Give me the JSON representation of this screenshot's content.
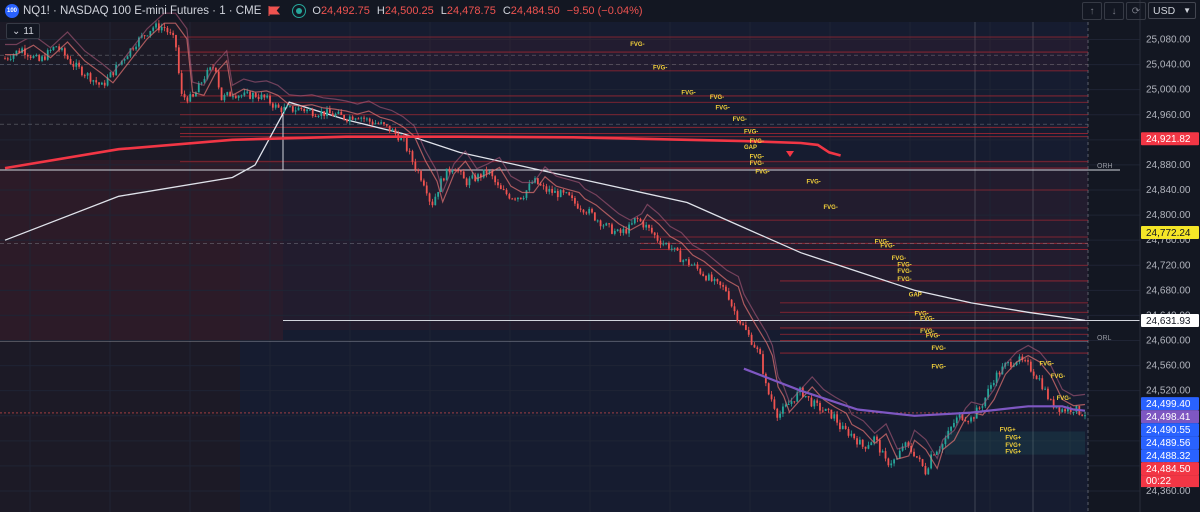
{
  "header": {
    "symbol_badge": "100",
    "title": "NQ1! · NASDAQ 100 E-mini Futures · 1 · CME",
    "open_key": "O",
    "open": "24,492.75",
    "high_key": "H",
    "high": "24,500.25",
    "low_key": "L",
    "low": "24,478.75",
    "close_key": "C",
    "close": "24,484.50",
    "change": "−9.50 (−0.04%)",
    "indicator_count": "11",
    "currency": "USD"
  },
  "colors": {
    "background": "#131722",
    "up": "#26a69a",
    "down": "#ef5350",
    "ema_red": "#f23645",
    "vwap": "#e0e3eb",
    "avg_purple": "#7e57c2",
    "fvg_text": "#f5d33b",
    "level_line": "#b22833"
  },
  "chart_data": {
    "type": "candlestick",
    "symbol": "NQ1!",
    "interval": "1",
    "yaxis": {
      "ticks": [
        "25,080.00",
        "25,040.00",
        "25,000.00",
        "24,960.00",
        "24,920.00",
        "24,880.00",
        "24,840.00",
        "24,800.00",
        "24,760.00",
        "24,720.00",
        "24,680.00",
        "24,640.00",
        "24,600.00",
        "24,560.00",
        "24,520.00",
        "24,480.00",
        "24,440.00",
        "24,400.00",
        "24,360.00"
      ],
      "range": [
        24345,
        25110
      ]
    },
    "price_path": [
      [
        0,
        25050
      ],
      [
        3,
        25065
      ],
      [
        6,
        25045
      ],
      [
        9,
        25070
      ],
      [
        12,
        25040
      ],
      [
        15,
        25020
      ],
      [
        17,
        25005
      ],
      [
        20,
        25040
      ],
      [
        23,
        25075
      ],
      [
        26,
        25100
      ],
      [
        28,
        25100
      ],
      [
        30,
        25075
      ],
      [
        31,
        24990
      ],
      [
        33,
        24985
      ],
      [
        35,
        25020
      ],
      [
        37,
        25040
      ],
      [
        38,
        24985
      ],
      [
        40,
        24995
      ],
      [
        42,
        24990
      ],
      [
        44,
        24992
      ],
      [
        46,
        24985
      ],
      [
        48,
        24970
      ],
      [
        50,
        24968
      ],
      [
        52,
        24970
      ],
      [
        54,
        24965
      ],
      [
        56,
        24963
      ],
      [
        58,
        24960
      ],
      [
        60,
        24955
      ],
      [
        62,
        24960
      ],
      [
        64,
        24950
      ],
      [
        66,
        24945
      ],
      [
        68,
        24935
      ],
      [
        70,
        24920
      ],
      [
        72,
        24880
      ],
      [
        74,
        24848
      ],
      [
        75,
        24815
      ],
      [
        77,
        24860
      ],
      [
        79,
        24880
      ],
      [
        81,
        24852
      ],
      [
        83,
        24860
      ],
      [
        85,
        24870
      ],
      [
        87,
        24840
      ],
      [
        89,
        24830
      ],
      [
        91,
        24830
      ],
      [
        93,
        24855
      ],
      [
        95,
        24840
      ],
      [
        97,
        24835
      ],
      [
        99,
        24830
      ],
      [
        100,
        24820
      ],
      [
        102,
        24810
      ],
      [
        104,
        24795
      ],
      [
        106,
        24780
      ],
      [
        108,
        24770
      ],
      [
        110,
        24780
      ],
      [
        111,
        24795
      ],
      [
        113,
        24780
      ],
      [
        115,
        24760
      ],
      [
        117,
        24750
      ],
      [
        119,
        24730
      ],
      [
        121,
        24720
      ],
      [
        123,
        24705
      ],
      [
        125,
        24690
      ],
      [
        127,
        24680
      ],
      [
        128,
        24652
      ],
      [
        130,
        24620
      ],
      [
        132,
        24590
      ],
      [
        133,
        24570
      ],
      [
        134,
        24520
      ],
      [
        135,
        24505
      ],
      [
        136,
        24480
      ],
      [
        138,
        24500
      ],
      [
        140,
        24520
      ],
      [
        142,
        24500
      ],
      [
        144,
        24488
      ],
      [
        146,
        24478
      ],
      [
        147,
        24460
      ],
      [
        149,
        24450
      ],
      [
        151,
        24430
      ],
      [
        153,
        24445
      ],
      [
        155,
        24405
      ],
      [
        157,
        24410
      ],
      [
        158,
        24435
      ],
      [
        160,
        24420
      ],
      [
        162,
        24390
      ],
      [
        163,
        24420
      ],
      [
        165,
        24435
      ],
      [
        167,
        24470
      ],
      [
        168,
        24480
      ],
      [
        170,
        24475
      ],
      [
        172,
        24500
      ],
      [
        174,
        24540
      ],
      [
        176,
        24560
      ],
      [
        178,
        24570
      ],
      [
        180,
        24560
      ],
      [
        182,
        24538
      ],
      [
        184,
        24500
      ],
      [
        186,
        24490
      ],
      [
        188,
        24492
      ],
      [
        189,
        24486
      ],
      [
        190,
        24484
      ]
    ],
    "ema_red": [
      [
        0,
        24875
      ],
      [
        20,
        24905
      ],
      [
        40,
        24920
      ],
      [
        60,
        24925
      ],
      [
        80,
        24925
      ],
      [
        100,
        24924
      ],
      [
        120,
        24920
      ],
      [
        130,
        24918
      ],
      [
        140,
        24915
      ],
      [
        143,
        24912
      ],
      [
        145,
        24900
      ],
      [
        147,
        24895
      ]
    ],
    "vwap": [
      [
        0,
        24760
      ],
      [
        20,
        24830
      ],
      [
        40,
        24860
      ],
      [
        44,
        24880
      ],
      [
        50,
        24980
      ],
      [
        60,
        24952
      ],
      [
        70,
        24930
      ],
      [
        80,
        24900
      ],
      [
        90,
        24880
      ],
      [
        100,
        24860
      ],
      [
        110,
        24840
      ],
      [
        120,
        24820
      ],
      [
        130,
        24780
      ],
      [
        140,
        24740
      ],
      [
        150,
        24710
      ],
      [
        160,
        24680
      ],
      [
        170,
        24660
      ],
      [
        180,
        24645
      ],
      [
        190,
        24632
      ]
    ],
    "avg_purple": [
      [
        130,
        24555
      ],
      [
        140,
        24520
      ],
      [
        150,
        24490
      ],
      [
        160,
        24480
      ],
      [
        170,
        24485
      ],
      [
        180,
        24495
      ],
      [
        186,
        24495
      ],
      [
        188,
        24490
      ],
      [
        190,
        24488
      ]
    ],
    "levels_red": [
      25084,
      25060,
      25030,
      24990,
      24980,
      24960,
      24940,
      24930,
      24925,
      24885,
      24875,
      24840,
      24792,
      24765,
      24755,
      24745,
      24720,
      24695,
      24660,
      24645,
      24620,
      24610,
      24600,
      24580
    ],
    "levels_dashed": [
      25055,
      25040,
      24945,
      24755
    ],
    "reference_lines": [
      {
        "label": "ORH",
        "value": 24872
      },
      {
        "label": "ORL",
        "value": 24598
      }
    ],
    "fvg_labels": [
      {
        "t": "FVG-",
        "x": 110,
        "y": 25070
      },
      {
        "t": "FVG-",
        "x": 114,
        "y": 25032
      },
      {
        "t": "FVG-",
        "x": 119,
        "y": 24992
      },
      {
        "t": "FVG-",
        "x": 124,
        "y": 24985
      },
      {
        "t": "FVG-",
        "x": 125,
        "y": 24968
      },
      {
        "t": "FVG-",
        "x": 128,
        "y": 24950
      },
      {
        "t": "FVG-",
        "x": 130,
        "y": 24930
      },
      {
        "t": "FVG-",
        "x": 131,
        "y": 24915
      },
      {
        "t": "GAP",
        "x": 130,
        "y": 24905
      },
      {
        "t": "FVG-",
        "x": 131,
        "y": 24890
      },
      {
        "t": "FVG-",
        "x": 131,
        "y": 24880
      },
      {
        "t": "FVG-",
        "x": 132,
        "y": 24866
      },
      {
        "t": "FVG-",
        "x": 141,
        "y": 24850
      },
      {
        "t": "FVG-",
        "x": 144,
        "y": 24810
      },
      {
        "t": "FVG-",
        "x": 153,
        "y": 24755
      },
      {
        "t": "FVG-",
        "x": 154,
        "y": 24748
      },
      {
        "t": "FVG-",
        "x": 156,
        "y": 24728
      },
      {
        "t": "FVG-",
        "x": 157,
        "y": 24718
      },
      {
        "t": "FVG-",
        "x": 157,
        "y": 24708
      },
      {
        "t": "FVG-",
        "x": 157,
        "y": 24695
      },
      {
        "t": "GAP",
        "x": 159,
        "y": 24670
      },
      {
        "t": "FVG-",
        "x": 160,
        "y": 24640
      },
      {
        "t": "FVG-",
        "x": 161,
        "y": 24632
      },
      {
        "t": "FVG-",
        "x": 161,
        "y": 24612
      },
      {
        "t": "FVG-",
        "x": 162,
        "y": 24605
      },
      {
        "t": "FVG-",
        "x": 163,
        "y": 24585
      },
      {
        "t": "FVG-",
        "x": 163,
        "y": 24555
      },
      {
        "t": "FVG-",
        "x": 182,
        "y": 24560
      },
      {
        "t": "FVG-",
        "x": 184,
        "y": 24540
      },
      {
        "t": "FVG-",
        "x": 185,
        "y": 24505
      },
      {
        "t": "FVG+",
        "x": 175,
        "y": 24455
      },
      {
        "t": "FVG+",
        "x": 176,
        "y": 24442
      },
      {
        "t": "FVG+",
        "x": 176,
        "y": 24430
      },
      {
        "t": "FVG+",
        "x": 176,
        "y": 24420
      }
    ],
    "price_tags": [
      {
        "label": "24,921.82",
        "value": 24921.82,
        "bg": "#f23645",
        "fg": "#ffffff"
      },
      {
        "label": "24,772.24",
        "value": 24772.24,
        "bg": "#f5e627",
        "fg": "#131722"
      },
      {
        "label": "24,631.93",
        "value": 24631.93,
        "bg": "#ffffff",
        "fg": "#131722"
      },
      {
        "label": "24,499.40",
        "value": 24499.4,
        "bg": "#2962ff",
        "fg": "#ffffff"
      },
      {
        "label": "24,498.41",
        "value": 24498.41,
        "bg": "#7e57c2",
        "fg": "#ffffff"
      },
      {
        "label": "24,490.55",
        "value": 24490.55,
        "bg": "#2962ff",
        "fg": "#ffffff"
      },
      {
        "label": "24,489.56",
        "value": 24489.56,
        "bg": "#2962ff",
        "fg": "#ffffff"
      },
      {
        "label": "24,488.32",
        "value": 24488.32,
        "bg": "#2962ff",
        "fg": "#ffffff"
      },
      {
        "label": "24,484.50",
        "value": 24484.5,
        "bg": "#f23645",
        "fg": "#ffffff"
      }
    ],
    "countdown": "00:22",
    "grid": true
  }
}
